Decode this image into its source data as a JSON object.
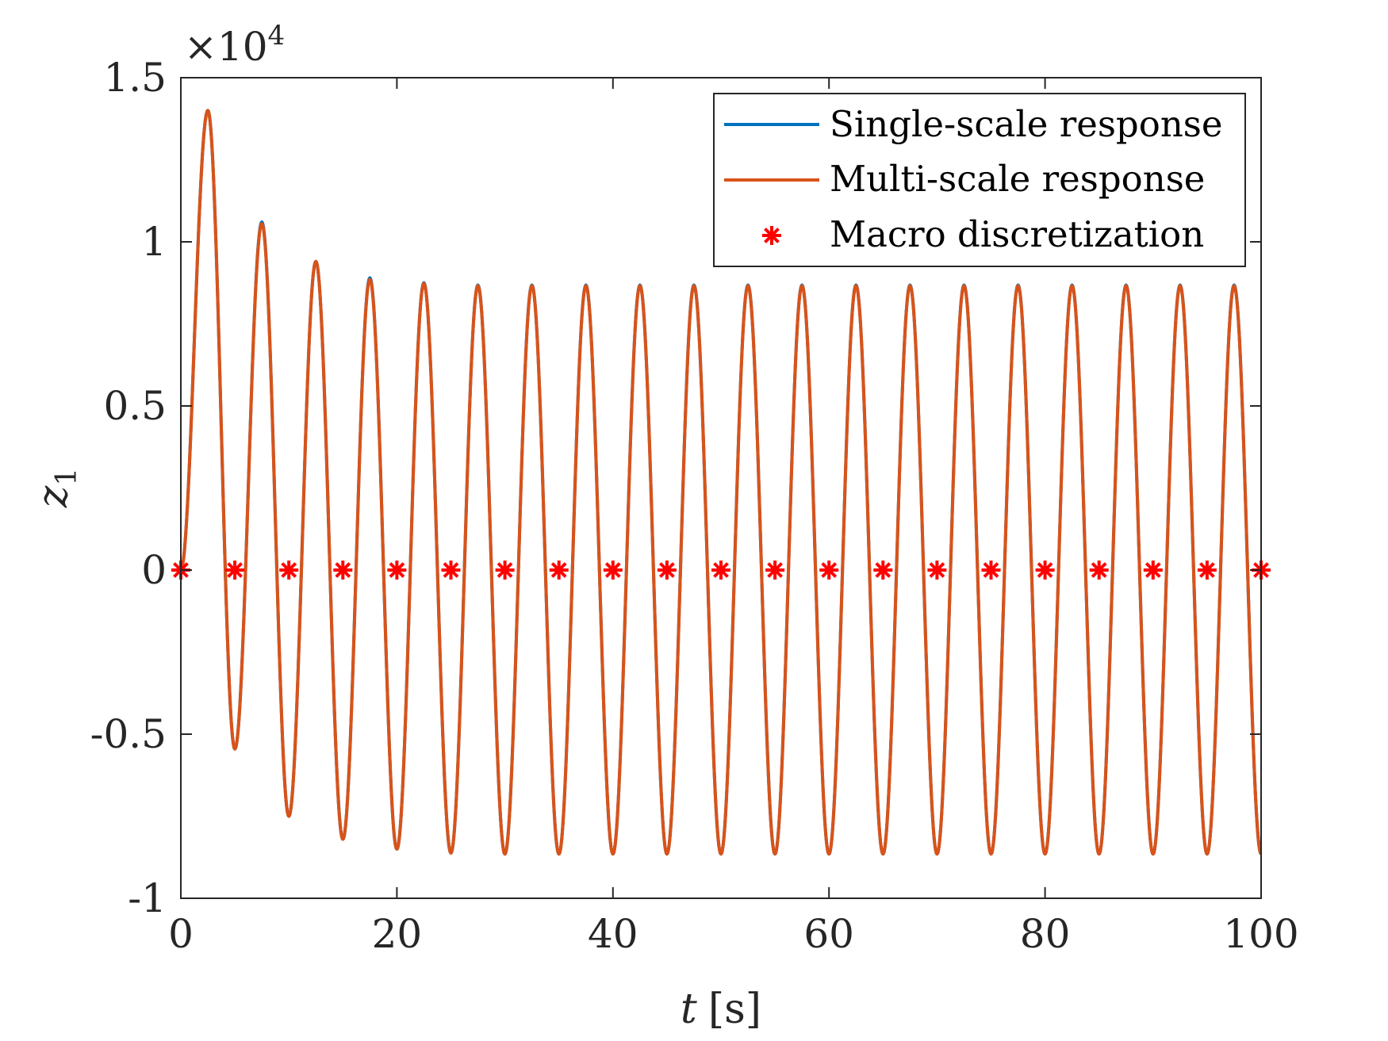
{
  "chart_data": {
    "type": "line",
    "title": "",
    "xlabel": {
      "var": "t",
      "unit": "[s]"
    },
    "ylabel": {
      "var": "z",
      "sub": "1"
    },
    "xlim": [
      0,
      100
    ],
    "ylim": [
      -1,
      1.5
    ],
    "xticks": [
      "0",
      "20",
      "40",
      "60",
      "80",
      "100"
    ],
    "yticks": [
      "-1",
      "-0.5",
      "0",
      "0.5",
      "1",
      "1.5"
    ],
    "y_exponent": {
      "base": "×10",
      "power": "4"
    },
    "grid": false,
    "legend_position": "top-right",
    "series": [
      {
        "name": "Single-scale response",
        "color": "#0072BD",
        "style": "line",
        "model": {
          "period": 5.0,
          "amplitude": 0.865,
          "peak_values": [
            1.4,
            1.06,
            0.94,
            0.89,
            0.875,
            0.868
          ],
          "trough_values": [
            -0.545,
            -0.75,
            -0.82,
            -0.85,
            -0.862,
            -0.865
          ]
        }
      },
      {
        "name": "Multi-scale response",
        "color": "#D95319",
        "style": "line",
        "model": {
          "period": 5.0,
          "amplitude": 0.865,
          "peak_values": [
            1.4,
            1.055,
            0.94,
            0.885,
            0.873,
            0.866
          ],
          "trough_values": [
            -0.545,
            -0.75,
            -0.82,
            -0.85,
            -0.862,
            -0.865
          ]
        }
      },
      {
        "name": "Macro discretization",
        "color": "#FF0000",
        "style": "marker",
        "marker": "*",
        "x": [
          0,
          5,
          10,
          15,
          20,
          25,
          30,
          35,
          40,
          45,
          50,
          55,
          60,
          65,
          70,
          75,
          80,
          85,
          90,
          95,
          100
        ],
        "y": [
          0,
          0,
          0,
          0,
          0,
          0,
          0,
          0,
          0,
          0,
          0,
          0,
          0,
          0,
          0,
          0,
          0,
          0,
          0,
          0,
          0
        ]
      }
    ]
  }
}
